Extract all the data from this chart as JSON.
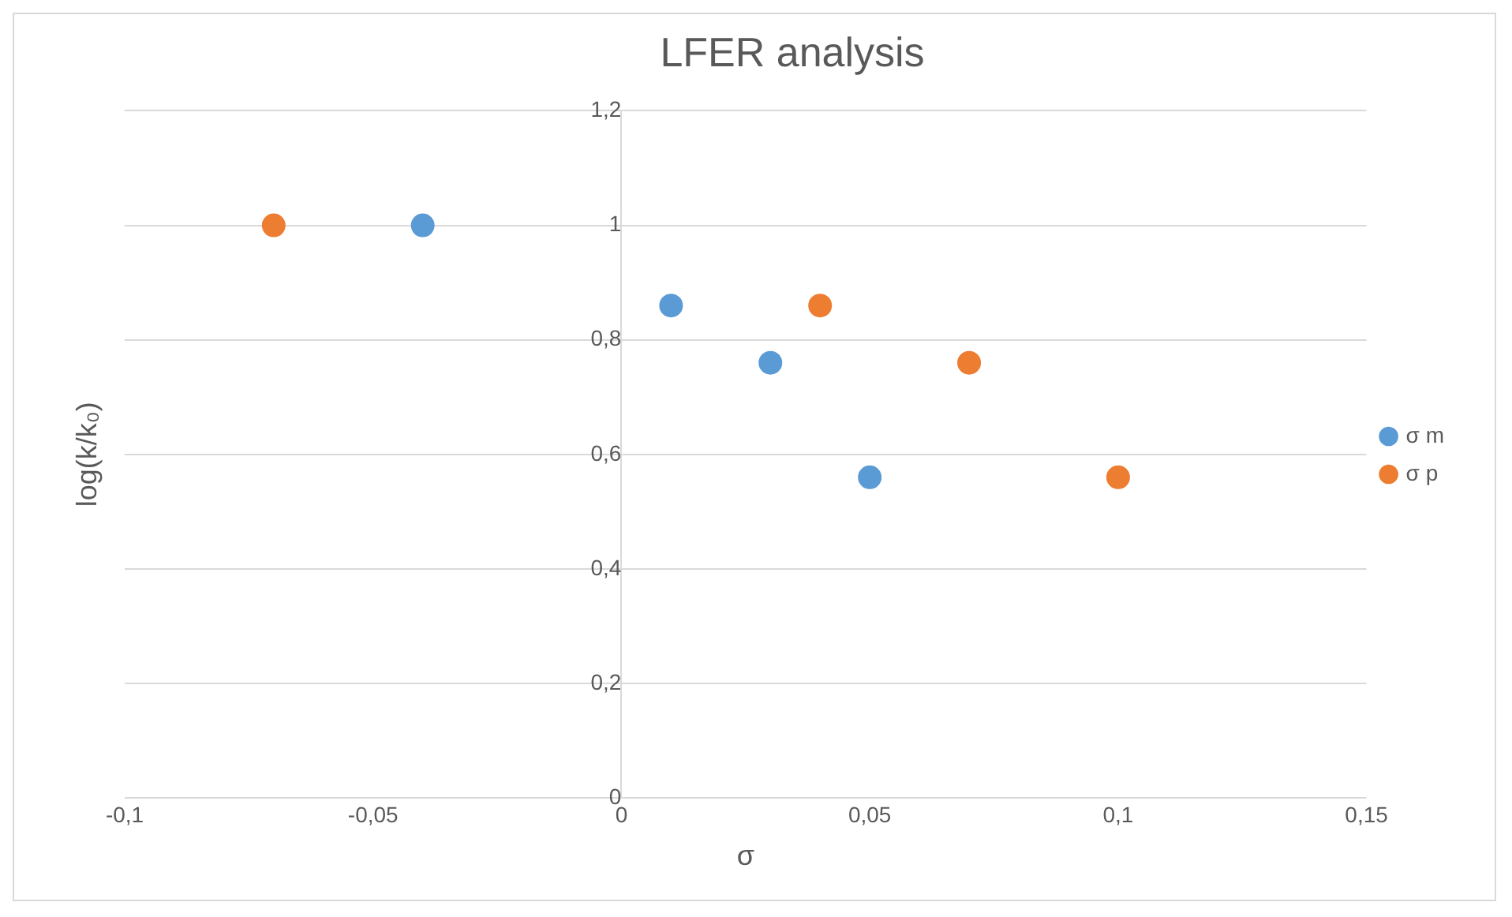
{
  "chart_data": {
    "type": "scatter",
    "title": "LFER analysis",
    "xlabel": "σ",
    "ylabel": "log(k/k₀)",
    "series": [
      {
        "name": "σ m",
        "color": "#5b9bd5",
        "x": [
          -0.04,
          0.01,
          0.03,
          0.05
        ],
        "values": [
          1.0,
          0.86,
          0.76,
          0.56
        ]
      },
      {
        "name": "σ p",
        "color": "#ed7d31",
        "x": [
          -0.07,
          0.04,
          0.07,
          0.1
        ],
        "values": [
          1.0,
          0.86,
          0.76,
          0.56
        ]
      }
    ],
    "xlim": [
      -0.1,
      0.15
    ],
    "xticks": [
      {
        "value": -0.1,
        "label": "-0,1"
      },
      {
        "value": -0.05,
        "label": "-0,05"
      },
      0,
      {
        "value": 0.05,
        "label": "0,05"
      },
      {
        "value": 0.1,
        "label": "0,1"
      },
      {
        "value": 0.15,
        "label": "0,15"
      }
    ],
    "ylim": [
      0,
      1.2
    ],
    "yticks": [
      0,
      {
        "value": 0.2,
        "label": "0,2"
      },
      {
        "value": 0.4,
        "label": "0,4"
      },
      {
        "value": 0.6,
        "label": "0,6"
      },
      {
        "value": 0.8,
        "label": "0,8"
      },
      1,
      {
        "value": 1.2,
        "label": "1,2"
      }
    ],
    "grid": "y",
    "legend": "right",
    "marker": "circle"
  }
}
